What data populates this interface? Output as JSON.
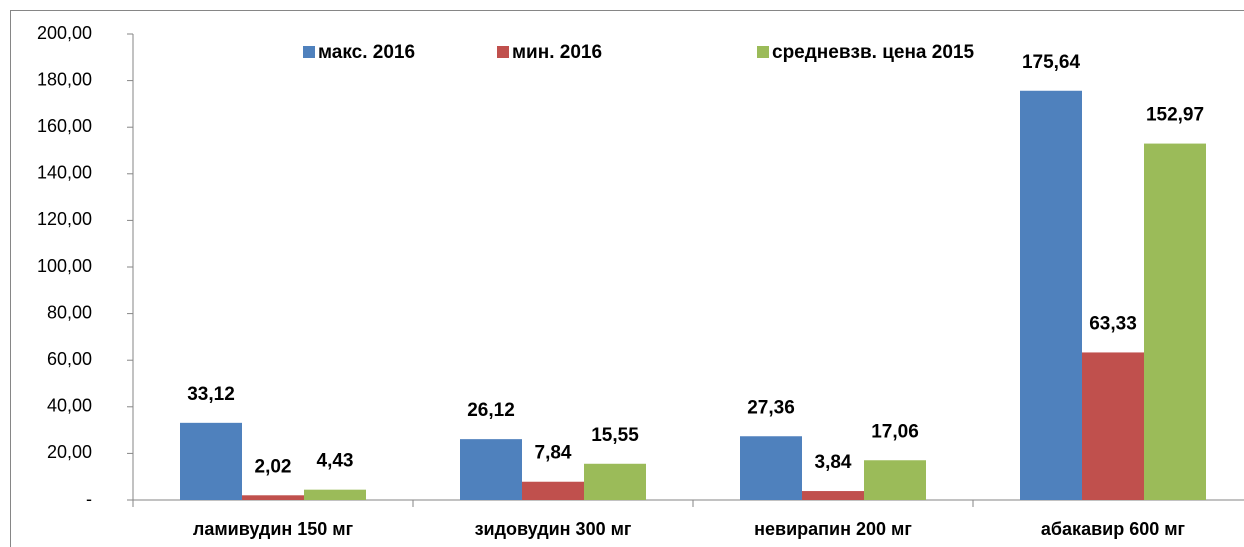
{
  "chart_data": {
    "type": "bar",
    "categories": [
      "ламивудин 150 мг",
      "зидовудин 300 мг",
      "невирапин 200 мг",
      "абакавир 600 мг"
    ],
    "series": [
      {
        "name": "макс. 2016",
        "color": "#4f81bd",
        "values": [
          33.12,
          26.12,
          27.36,
          175.64
        ],
        "value_labels": [
          "33,12",
          "26,12",
          "27,36",
          "175,64"
        ]
      },
      {
        "name": "мин. 2016",
        "color": "#c0504d",
        "values": [
          2.02,
          7.84,
          3.84,
          63.33
        ],
        "value_labels": [
          "2,02",
          "7,84",
          "3,84",
          "63,33"
        ]
      },
      {
        "name": "средневзв. цена 2015",
        "color": "#9bbb59",
        "values": [
          4.43,
          15.55,
          17.06,
          152.97
        ],
        "value_labels": [
          "4,43",
          "15,55",
          "17,06",
          "152,97"
        ]
      }
    ],
    "ylim": [
      0,
      200
    ],
    "yticks": [
      {
        "value": 0,
        "label": "-"
      },
      {
        "value": 20,
        "label": "20,00"
      },
      {
        "value": 40,
        "label": "40,00"
      },
      {
        "value": 60,
        "label": "60,00"
      },
      {
        "value": 80,
        "label": "80,00"
      },
      {
        "value": 100,
        "label": "100,00"
      },
      {
        "value": 120,
        "label": "120,00"
      },
      {
        "value": 140,
        "label": "140,00"
      },
      {
        "value": 160,
        "label": "160,00"
      },
      {
        "value": 180,
        "label": "180,00"
      },
      {
        "value": 200,
        "label": "200,00"
      }
    ],
    "legend": "top",
    "grid": false
  }
}
